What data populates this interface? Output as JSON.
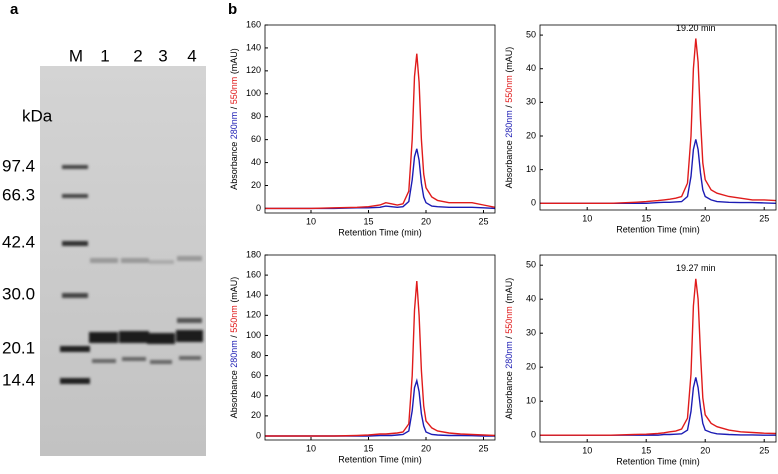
{
  "panel_labels": [
    "a",
    "b"
  ],
  "gel": {
    "lane_labels": [
      "M",
      "1",
      "2",
      "3",
      "4"
    ],
    "unit": "kDa",
    "markers": [
      "97.4",
      "66.3",
      "42.4",
      "30.0",
      "20.1",
      "14.4"
    ]
  },
  "chart_data": [
    {
      "type": "line",
      "xlabel": "Retention Time (min)",
      "ylabel_parts": [
        "Absorbance ",
        "280nm",
        " / ",
        "550nm",
        " (mAU)"
      ],
      "x": [
        6,
        8,
        10,
        12,
        14,
        15,
        16,
        16.5,
        17,
        17.5,
        18,
        18.5,
        18.8,
        19,
        19.2,
        19.4,
        19.6,
        19.8,
        20,
        20.5,
        21,
        22,
        23,
        24,
        25,
        26
      ],
      "series": [
        {
          "color": "#1c1cb4",
          "values": [
            0,
            0,
            0,
            0,
            0.5,
            0.5,
            1,
            2,
            1.5,
            1,
            1.5,
            6,
            25,
            45,
            52,
            42,
            22,
            10,
            5,
            2,
            1.5,
            1,
            1,
            1,
            0.5,
            0
          ]
        },
        {
          "color": "#e01b1b",
          "values": [
            0,
            0,
            0,
            0.5,
            1,
            1.5,
            3,
            5,
            4,
            3,
            4,
            15,
            60,
            115,
            135,
            110,
            60,
            30,
            18,
            10,
            7,
            5,
            5,
            5,
            3,
            1
          ]
        }
      ],
      "xlim": [
        6,
        26
      ],
      "ylim": [
        -4,
        160
      ],
      "xticks": [
        10,
        15,
        20,
        25
      ],
      "yticks": [
        0,
        20,
        40,
        60,
        80,
        100,
        120,
        140,
        160
      ]
    },
    {
      "type": "line",
      "xlabel": "Retention Time (min)",
      "ylabel_parts": [
        "Absorbance ",
        "280nm",
        " / ",
        "550nm",
        " (mAU)"
      ],
      "annotation": "19.20 min",
      "x": [
        6,
        8,
        10,
        12,
        14,
        15,
        16,
        16.5,
        17,
        17.5,
        18,
        18.5,
        18.8,
        19,
        19.2,
        19.4,
        19.6,
        19.8,
        20,
        20.5,
        21,
        22,
        23,
        24,
        25,
        26
      ],
      "series": [
        {
          "color": "#1c1cb4",
          "values": [
            0,
            0,
            0,
            0,
            0,
            0,
            0.2,
            0.3,
            0.3,
            0.4,
            0.5,
            2,
            8,
            16,
            19,
            16,
            9,
            4,
            2,
            1,
            0.5,
            0.3,
            0.2,
            0.2,
            0.1,
            0
          ]
        },
        {
          "color": "#e01b1b",
          "values": [
            0,
            0,
            0,
            0,
            0.3,
            0.5,
            0.8,
            1,
            1.2,
            1.5,
            2,
            6,
            20,
            40,
            49,
            42,
            25,
            12,
            7,
            4,
            3,
            2,
            1.5,
            1,
            1,
            0.8
          ]
        }
      ],
      "xlim": [
        6,
        26
      ],
      "ylim": [
        -2,
        53
      ],
      "xticks": [
        10,
        15,
        20,
        25
      ],
      "yticks": [
        0,
        10,
        20,
        30,
        40,
        50
      ]
    },
    {
      "type": "line",
      "xlabel": "Retention Time (min)",
      "ylabel_parts": [
        "Absorbance ",
        "280nm",
        " / ",
        "550nm",
        " (mAU)"
      ],
      "x": [
        6,
        8,
        10,
        12,
        14,
        15,
        16,
        16.5,
        17,
        17.5,
        18,
        18.5,
        18.8,
        19,
        19.2,
        19.4,
        19.6,
        19.8,
        20,
        20.5,
        21,
        22,
        23,
        24,
        25,
        26
      ],
      "series": [
        {
          "color": "#1c1cb4",
          "values": [
            0,
            0,
            0,
            0,
            0,
            0,
            0.5,
            0.5,
            0.5,
            1,
            1.5,
            5,
            25,
            48,
            55,
            44,
            22,
            10,
            4,
            1.5,
            1,
            0.5,
            0.5,
            0.3,
            0,
            0
          ]
        },
        {
          "color": "#e01b1b",
          "values": [
            0,
            0,
            0,
            0,
            0.5,
            1,
            2,
            2,
            2.5,
            3,
            4,
            12,
            60,
            125,
            154,
            120,
            65,
            30,
            15,
            8,
            5,
            3,
            2,
            1.5,
            1,
            0.5
          ]
        }
      ],
      "xlim": [
        6,
        26
      ],
      "ylim": [
        -4,
        180
      ],
      "xticks": [
        10,
        15,
        20,
        25
      ],
      "yticks": [
        0,
        20,
        40,
        60,
        80,
        100,
        120,
        140,
        160,
        180
      ]
    },
    {
      "type": "line",
      "xlabel": "Retention Time (min)",
      "ylabel_parts": [
        "Absorbance ",
        "280nm",
        " / ",
        "550nm",
        " (mAU)"
      ],
      "annotation": "19.27 min",
      "x": [
        6,
        8,
        10,
        12,
        14,
        15,
        16,
        16.5,
        17,
        17.5,
        18,
        18.5,
        18.8,
        19,
        19.2,
        19.4,
        19.6,
        19.8,
        20,
        20.5,
        21,
        22,
        23,
        24,
        25,
        26
      ],
      "series": [
        {
          "color": "#1c1cb4",
          "values": [
            0,
            0,
            0,
            0,
            0,
            0,
            0,
            0.2,
            0.2,
            0.3,
            0.4,
            1.5,
            7,
            14,
            17,
            14,
            8,
            3.5,
            1.5,
            0.8,
            0.4,
            0.2,
            0.1,
            0.1,
            0,
            0
          ]
        },
        {
          "color": "#e01b1b",
          "values": [
            0,
            0,
            0,
            0,
            0.2,
            0.3,
            0.5,
            0.7,
            1,
            1.2,
            1.8,
            5,
            18,
            38,
            46,
            40,
            24,
            11,
            6,
            3.5,
            2.5,
            1.5,
            1,
            0.8,
            0.6,
            0.5
          ]
        }
      ],
      "xlim": [
        6,
        26
      ],
      "ylim": [
        -2,
        53
      ],
      "xticks": [
        10,
        15,
        20,
        25
      ],
      "yticks": [
        0,
        10,
        20,
        30,
        40,
        50
      ]
    }
  ]
}
